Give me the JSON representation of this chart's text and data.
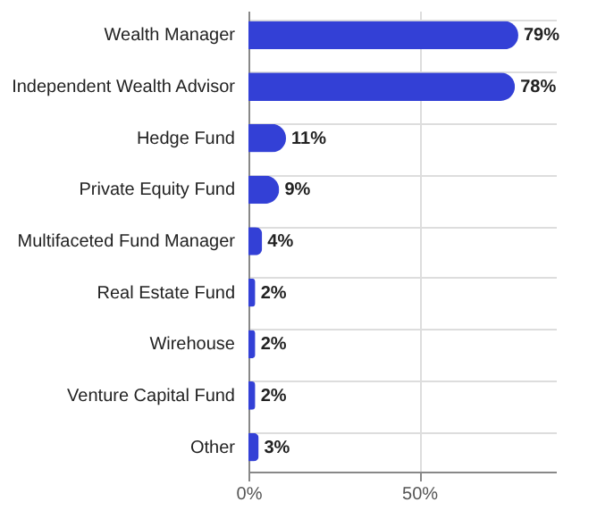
{
  "chart_data": {
    "type": "bar",
    "orientation": "horizontal",
    "categories": [
      "Wealth Manager",
      "Independent Wealth Advisor",
      "Hedge Fund",
      "Private Equity Fund",
      "Multifaceted Fund Manager",
      "Real Estate Fund",
      "Wirehouse",
      "Venture Capital Fund",
      "Other"
    ],
    "values": [
      79,
      78,
      11,
      9,
      4,
      2,
      2,
      2,
      3
    ],
    "value_labels": [
      "79%",
      "78%",
      "11%",
      "9%",
      "4%",
      "2%",
      "2%",
      "2%",
      "3%"
    ],
    "color": "#3340d6",
    "xlim": [
      0,
      90
    ],
    "xticks": [
      {
        "value": 0,
        "label": "0%"
      },
      {
        "value": 50,
        "label": "50%"
      }
    ],
    "grid": true
  }
}
